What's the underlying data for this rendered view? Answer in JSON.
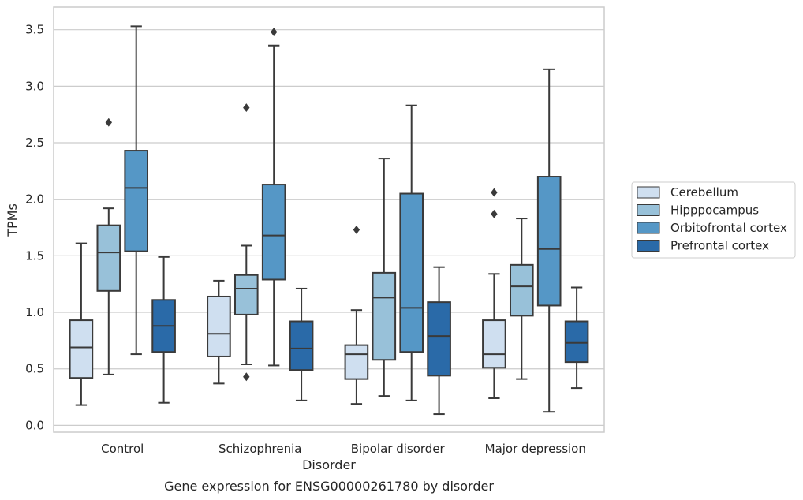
{
  "chart_data": {
    "type": "box",
    "title": "",
    "caption": "Gene expression for ENSG00000261780 by disorder",
    "xlabel": "Disorder",
    "ylabel": "TPMs",
    "ylim": [
      -0.06,
      3.7
    ],
    "yticks": [
      "0.0",
      "0.5",
      "1.0",
      "1.5",
      "2.0",
      "2.5",
      "3.0",
      "3.5"
    ],
    "grid": true,
    "legend_position": "right",
    "categories": [
      "Control",
      "Schizophrenia",
      "Bipolar disorder",
      "Major depression"
    ],
    "series": [
      {
        "name": "Cerebellum",
        "color": "#cfdff0",
        "boxes": [
          {
            "whislo": 0.18,
            "q1": 0.42,
            "med": 0.69,
            "q3": 0.93,
            "whishi": 1.61,
            "fliers": []
          },
          {
            "whislo": 0.37,
            "q1": 0.61,
            "med": 0.81,
            "q3": 1.14,
            "whishi": 1.28,
            "fliers": []
          },
          {
            "whislo": 0.19,
            "q1": 0.41,
            "med": 0.63,
            "q3": 0.71,
            "whishi": 1.02,
            "fliers": [
              1.73
            ]
          },
          {
            "whislo": 0.24,
            "q1": 0.51,
            "med": 0.63,
            "q3": 0.93,
            "whishi": 1.34,
            "fliers": [
              1.87,
              2.06
            ]
          }
        ]
      },
      {
        "name": "Hipppocampus",
        "color": "#98c1d9",
        "boxes": [
          {
            "whislo": 0.45,
            "q1": 1.19,
            "med": 1.53,
            "q3": 1.77,
            "whishi": 1.92,
            "fliers": [
              2.68
            ]
          },
          {
            "whislo": 0.54,
            "q1": 0.98,
            "med": 1.21,
            "q3": 1.33,
            "whishi": 1.59,
            "fliers": [
              0.43,
              2.81
            ]
          },
          {
            "whislo": 0.26,
            "q1": 0.58,
            "med": 1.13,
            "q3": 1.35,
            "whishi": 2.36,
            "fliers": []
          },
          {
            "whislo": 0.41,
            "q1": 0.97,
            "med": 1.23,
            "q3": 1.42,
            "whishi": 1.83,
            "fliers": []
          }
        ]
      },
      {
        "name": "Orbitofrontal cortex",
        "color": "#5597c6",
        "boxes": [
          {
            "whislo": 0.63,
            "q1": 1.54,
            "med": 2.1,
            "q3": 2.43,
            "whishi": 3.53,
            "fliers": []
          },
          {
            "whislo": 0.53,
            "q1": 1.29,
            "med": 1.68,
            "q3": 2.13,
            "whishi": 3.36,
            "fliers": [
              3.48
            ]
          },
          {
            "whislo": 0.22,
            "q1": 0.65,
            "med": 1.04,
            "q3": 2.05,
            "whishi": 2.83,
            "fliers": []
          },
          {
            "whislo": 0.12,
            "q1": 1.06,
            "med": 1.56,
            "q3": 2.2,
            "whishi": 3.15,
            "fliers": []
          }
        ]
      },
      {
        "name": "Prefrontal cortex",
        "color": "#2a6aa8",
        "boxes": [
          {
            "whislo": 0.2,
            "q1": 0.65,
            "med": 0.88,
            "q3": 1.11,
            "whishi": 1.49,
            "fliers": []
          },
          {
            "whislo": 0.22,
            "q1": 0.49,
            "med": 0.68,
            "q3": 0.92,
            "whishi": 1.21,
            "fliers": []
          },
          {
            "whislo": 0.1,
            "q1": 0.44,
            "med": 0.79,
            "q3": 1.09,
            "whishi": 1.4,
            "fliers": []
          },
          {
            "whislo": 0.33,
            "q1": 0.56,
            "med": 0.73,
            "q3": 0.92,
            "whishi": 1.22,
            "fliers": []
          }
        ]
      }
    ]
  }
}
